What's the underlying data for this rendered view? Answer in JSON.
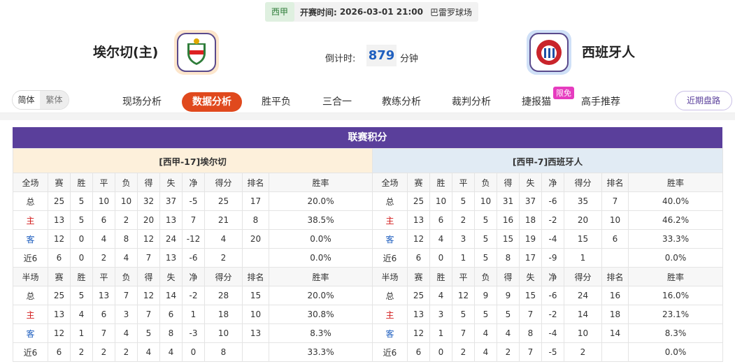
{
  "header": {
    "league": "西甲",
    "time_label": "开赛时间:",
    "time": "2026-03-01 21:00",
    "venue": "巴雷罗球场"
  },
  "match": {
    "home": "埃尔切(主)",
    "away": "西班牙人",
    "countdown_label": "倒计时:",
    "countdown": 879,
    "countdown_unit": "分钟"
  },
  "nav": {
    "lang": [
      "简体",
      "繁体"
    ],
    "tabs": [
      "现场分析",
      "数据分析",
      "胜平负",
      "三合一",
      "教练分析",
      "裁判分析",
      "捷报猫",
      "高手推荐"
    ],
    "badge": "限免",
    "recent": "近期盘路"
  },
  "standings": {
    "title": "联赛积分",
    "teams": [
      {
        "label": "[西甲-17]埃尔切",
        "sections": [
          {
            "columns": [
              "全场",
              "赛",
              "胜",
              "平",
              "负",
              "得",
              "失",
              "净",
              "得分",
              "排名",
              "胜率"
            ],
            "rows": [
              [
                "总",
                25,
                5,
                10,
                10,
                32,
                37,
                -5,
                25,
                17,
                "20.0%"
              ],
              [
                "主",
                13,
                5,
                6,
                2,
                20,
                13,
                7,
                21,
                8,
                "38.5%"
              ],
              [
                "客",
                12,
                0,
                4,
                8,
                12,
                24,
                -12,
                4,
                20,
                "0.0%"
              ],
              [
                "近6",
                6,
                0,
                2,
                4,
                7,
                13,
                -6,
                2,
                null,
                "0.0%"
              ]
            ]
          },
          {
            "columns": [
              "半场",
              "赛",
              "胜",
              "平",
              "负",
              "得",
              "失",
              "净",
              "得分",
              "排名",
              "胜率"
            ],
            "rows": [
              [
                "总",
                25,
                5,
                13,
                7,
                12,
                14,
                -2,
                28,
                15,
                "20.0%"
              ],
              [
                "主",
                13,
                4,
                6,
                3,
                7,
                6,
                1,
                18,
                10,
                "30.8%"
              ],
              [
                "客",
                12,
                1,
                7,
                4,
                5,
                8,
                -3,
                10,
                13,
                "8.3%"
              ],
              [
                "近6",
                6,
                2,
                2,
                2,
                4,
                4,
                0,
                8,
                null,
                "33.3%"
              ]
            ]
          }
        ]
      },
      {
        "label": "[西甲-7]西班牙人",
        "sections": [
          {
            "columns": [
              "全场",
              "赛",
              "胜",
              "平",
              "负",
              "得",
              "失",
              "净",
              "得分",
              "排名",
              "胜率"
            ],
            "rows": [
              [
                "总",
                25,
                10,
                5,
                10,
                31,
                37,
                -6,
                35,
                7,
                "40.0%"
              ],
              [
                "主",
                13,
                6,
                2,
                5,
                16,
                18,
                -2,
                20,
                10,
                "46.2%"
              ],
              [
                "客",
                12,
                4,
                3,
                5,
                15,
                19,
                -4,
                15,
                6,
                "33.3%"
              ],
              [
                "近6",
                6,
                0,
                1,
                5,
                8,
                17,
                -9,
                1,
                null,
                "0.0%"
              ]
            ]
          },
          {
            "columns": [
              "半场",
              "赛",
              "胜",
              "平",
              "负",
              "得",
              "失",
              "净",
              "得分",
              "排名",
              "胜率"
            ],
            "rows": [
              [
                "总",
                25,
                4,
                12,
                9,
                9,
                15,
                -6,
                24,
                16,
                "16.0%"
              ],
              [
                "主",
                13,
                3,
                5,
                5,
                5,
                7,
                -2,
                14,
                18,
                "23.1%"
              ],
              [
                "客",
                12,
                1,
                7,
                4,
                4,
                8,
                -4,
                10,
                14,
                "8.3%"
              ],
              [
                "近6",
                6,
                0,
                2,
                4,
                2,
                7,
                -5,
                2,
                null,
                "0.0%"
              ]
            ]
          }
        ]
      }
    ]
  }
}
